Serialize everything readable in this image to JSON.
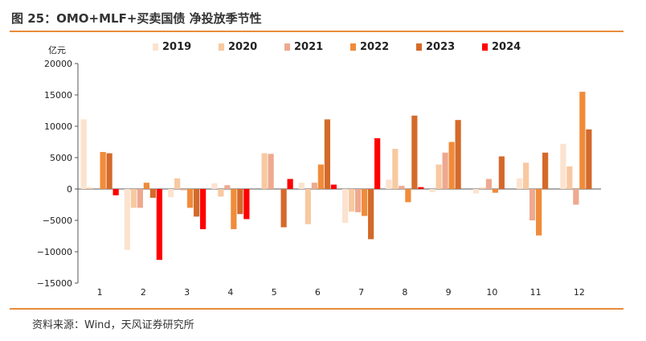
{
  "header": {
    "title": "图 25：OMO+MLF+买卖国债 净投放季节性"
  },
  "footer": {
    "source": "资料来源：Wind，天风证券研究所"
  },
  "colors": {
    "accent": "#e98b3a",
    "series": [
      "#fbe3cf",
      "#f8c9a1",
      "#eea98f",
      "#f08b3a",
      "#d46a2a",
      "#ff0000"
    ]
  },
  "chart_data": {
    "type": "bar",
    "unit_label": "亿元",
    "title": "",
    "xlabel": "",
    "ylabel": "亿元",
    "ylim": [
      -15000,
      20000
    ],
    "yticks": [
      20000,
      15000,
      10000,
      5000,
      0,
      -5000,
      -10000,
      -15000
    ],
    "ytick_labels": [
      "20000",
      "15000",
      "10000",
      "5000",
      "0",
      "−5000",
      "−10000",
      "−15000"
    ],
    "categories": [
      "1",
      "2",
      "3",
      "4",
      "5",
      "6",
      "7",
      "8",
      "9",
      "10",
      "11",
      "12"
    ],
    "legend_position": "top",
    "series": [
      {
        "name": "2019",
        "values": [
          11100,
          -9700,
          -1300,
          900,
          0,
          1000,
          -5400,
          1500,
          -500,
          -700,
          1700,
          7200
        ]
      },
      {
        "name": "2020",
        "values": [
          200,
          -3000,
          1700,
          -1200,
          5700,
          -5600,
          -3600,
          6400,
          3900,
          200,
          4200,
          3600
        ]
      },
      {
        "name": "2021",
        "values": [
          0,
          -3000,
          -200,
          600,
          5600,
          1000,
          -3700,
          500,
          5800,
          1600,
          -5000,
          -2500
        ]
      },
      {
        "name": "2022",
        "values": [
          5900,
          1000,
          -3000,
          -6400,
          0,
          3900,
          -4300,
          -2100,
          7500,
          -600,
          -7400,
          15500
        ]
      },
      {
        "name": "2023",
        "values": [
          5700,
          -1400,
          -4400,
          -4000,
          -6100,
          11100,
          -8000,
          11700,
          11000,
          5200,
          5800,
          9500
        ]
      },
      {
        "name": "2024",
        "values": [
          -1000,
          -11300,
          -6400,
          -4800,
          1600,
          700,
          8100,
          300,
          null,
          null,
          null,
          null
        ]
      }
    ]
  }
}
